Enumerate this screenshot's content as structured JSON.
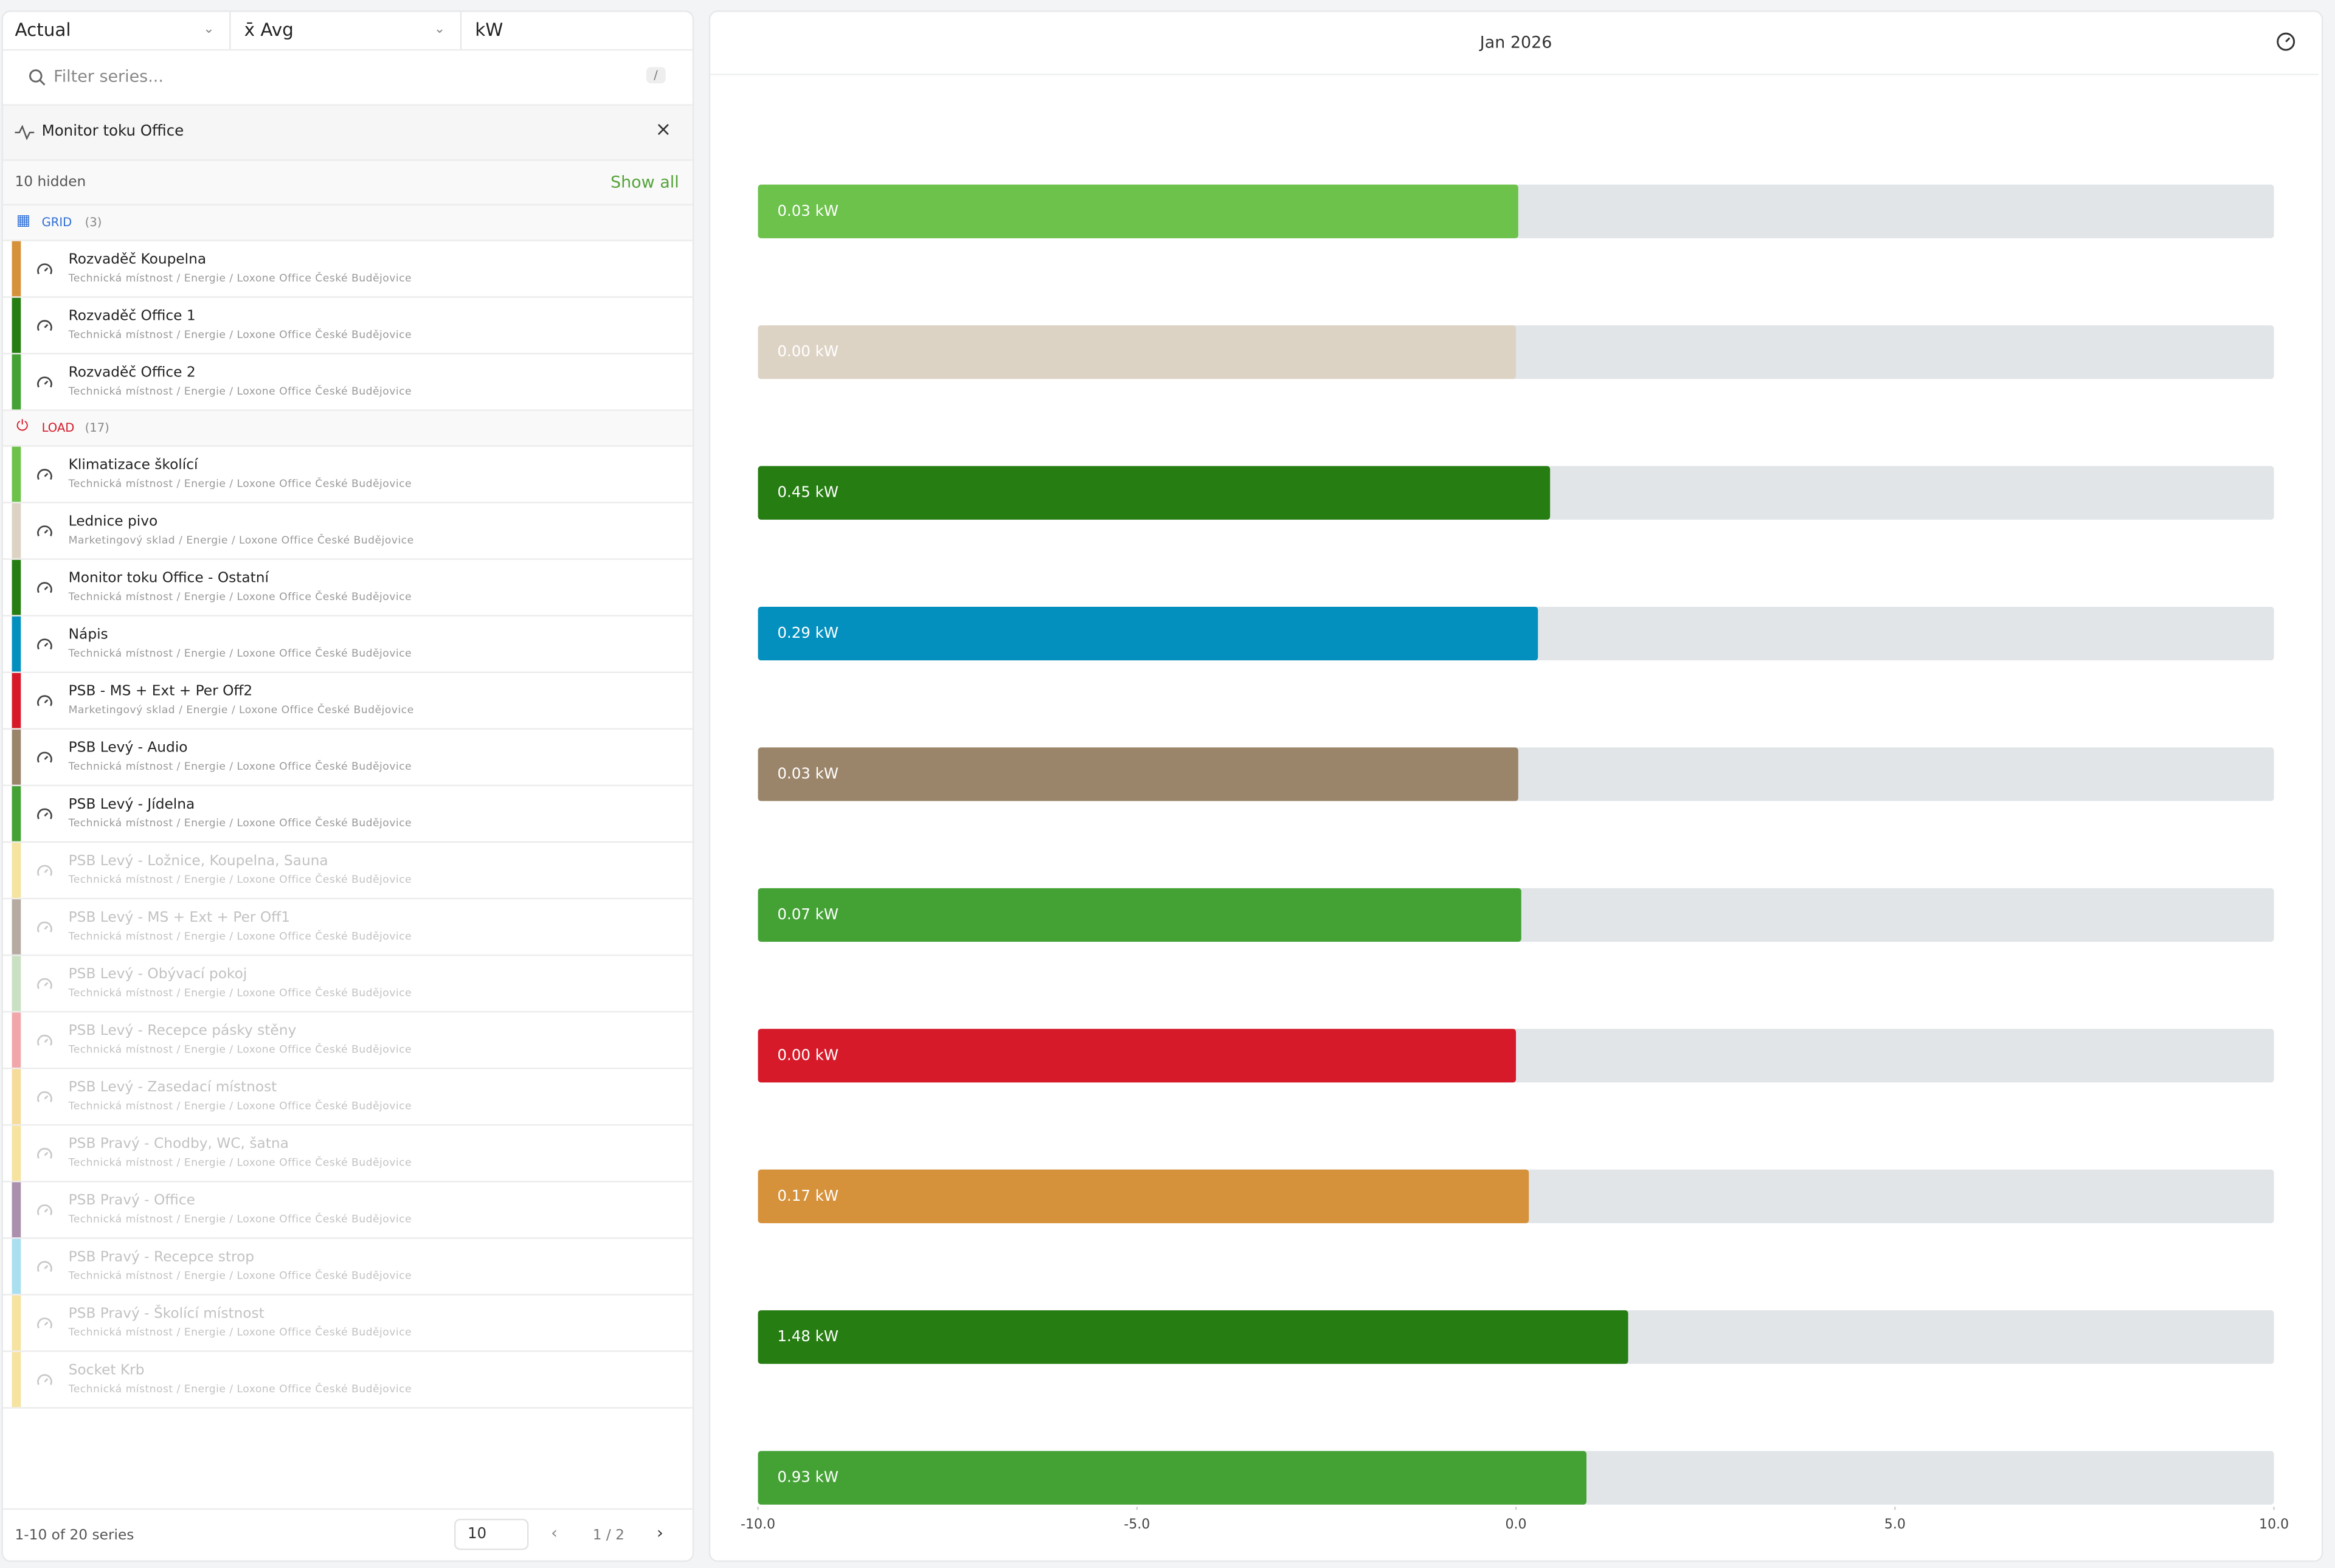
{
  "toolbar": {
    "mode": "Actual",
    "aggregate": "x̄ Avg",
    "unit": "kW"
  },
  "filter": {
    "placeholder": "Filter series...",
    "shortcut": "/"
  },
  "selection": {
    "title": "Monitor toku Office"
  },
  "hidden_bar": {
    "text": "10 hidden",
    "action": "Show all"
  },
  "groups": [
    {
      "name": "GRID",
      "count": "(3)",
      "label_color": "#2f6fd6",
      "items": [
        {
          "name": "Rozvaděč Koupelna",
          "path": "Technická místnost / Energie / Loxone Office České Budějovice",
          "color": "#d6913b",
          "hidden": false
        },
        {
          "name": "Rozvaděč Office 1",
          "path": "Technická místnost / Energie / Loxone Office České Budějovice",
          "color": "#267d12",
          "hidden": false
        },
        {
          "name": "Rozvaděč Office 2",
          "path": "Technická místnost / Energie / Loxone Office České Budějovice",
          "color": "#44a235",
          "hidden": false
        }
      ]
    },
    {
      "name": "LOAD",
      "count": "(17)",
      "label_color": "#d61a2a",
      "items": [
        {
          "name": "Klimatizace školící",
          "path": "Technická místnost / Energie / Loxone Office České Budějovice",
          "color": "#6cc24a",
          "hidden": false
        },
        {
          "name": "Lednice pivo",
          "path": "Marketingový sklad / Energie / Loxone Office České Budějovice",
          "color": "#ddd3c5",
          "hidden": false
        },
        {
          "name": "Monitor toku Office - Ostatní",
          "path": "Technická místnost / Energie / Loxone Office České Budějovice",
          "color": "#267d12",
          "hidden": false
        },
        {
          "name": "Nápis",
          "path": "Technická místnost / Energie / Loxone Office České Budějovice",
          "color": "#0390bf",
          "hidden": false
        },
        {
          "name": "PSB - MS + Ext + Per Off2",
          "path": "Marketingový sklad / Energie / Loxone Office České Budějovice",
          "color": "#d61a2a",
          "hidden": false
        },
        {
          "name": "PSB Levý - Audio",
          "path": "Technická místnost / Energie / Loxone Office České Budějovice",
          "color": "#9b856a",
          "hidden": false
        },
        {
          "name": "PSB Levý - Jídelna",
          "path": "Technická místnost / Energie / Loxone Office České Budějovice",
          "color": "#44a235",
          "hidden": false
        },
        {
          "name": "PSB Levý - Ložnice, Koupelna, Sauna",
          "path": "Technická místnost / Energie / Loxone Office České Budějovice",
          "color": "#f5e3a0",
          "hidden": true
        },
        {
          "name": "PSB Levý - MS + Ext + Per Off1",
          "path": "Technická místnost / Energie / Loxone Office České Budějovice",
          "color": "#b5aba1",
          "hidden": true
        },
        {
          "name": "PSB Levý - Obývací pokoj",
          "path": "Technická místnost / Energie / Loxone Office České Budějovice",
          "color": "#c9e0c2",
          "hidden": true
        },
        {
          "name": "PSB Levý - Recepce pásky stěny",
          "path": "Technická místnost / Energie / Loxone Office České Budějovice",
          "color": "#f1a7aa",
          "hidden": true
        },
        {
          "name": "PSB Levý - Zasedací místnost",
          "path": "Technická místnost / Energie / Loxone Office České Budějovice",
          "color": "#f5dc9a",
          "hidden": true
        },
        {
          "name": "PSB Pravý - Chodby, WC, šatna",
          "path": "Technická místnost / Energie / Loxone Office České Budějovice",
          "color": "#f6e39f",
          "hidden": true
        },
        {
          "name": "PSB Pravý - Office",
          "path": "Technická místnost / Energie / Loxone Office České Budějovice",
          "color": "#ab90ad",
          "hidden": true
        },
        {
          "name": "PSB Pravý - Recepce strop",
          "path": "Technická místnost / Energie / Loxone Office České Budějovice",
          "color": "#aadff0",
          "hidden": true
        },
        {
          "name": "PSB Pravý - Školící místnost",
          "path": "Technická místnost / Energie / Loxone Office České Budějovice",
          "color": "#f6e39f",
          "hidden": true
        },
        {
          "name": "Socket Krb",
          "path": "Technická místnost / Energie / Loxone Office České Budějovice",
          "color": "#f6e39f",
          "hidden": true
        }
      ]
    }
  ],
  "footer": {
    "range": "1-10 of 20 series",
    "page_size": "10",
    "page": "1 / 2"
  },
  "chart_data": {
    "type": "hbar",
    "title": "Jan 2026",
    "values": [
      0.03,
      0.0,
      0.45,
      0.29,
      0.03,
      0.07,
      0.0,
      0.17,
      1.48,
      0.93
    ],
    "value_labels": [
      "0.03 kW",
      "0.00 kW",
      "0.45 kW",
      "0.29 kW",
      "0.03 kW",
      "0.07 kW",
      "0.00 kW",
      "0.17 kW",
      "1.48 kW",
      "0.93 kW"
    ],
    "colors": [
      "#6cc24a",
      "#ddd3c5",
      "#267d12",
      "#0390bf",
      "#9b856a",
      "#44a235",
      "#d61a2a",
      "#d6913b",
      "#267d12",
      "#44a235"
    ],
    "track_color": "#e1e5e8",
    "xlim": [
      -10,
      10
    ],
    "xticks": [
      {
        "value": -10,
        "label": "-10.0"
      },
      {
        "value": -5,
        "label": "-5.0"
      },
      {
        "value": 0,
        "label": "0.0"
      },
      {
        "value": 5,
        "label": "5.0"
      },
      {
        "value": 10,
        "label": "10.0"
      }
    ]
  }
}
